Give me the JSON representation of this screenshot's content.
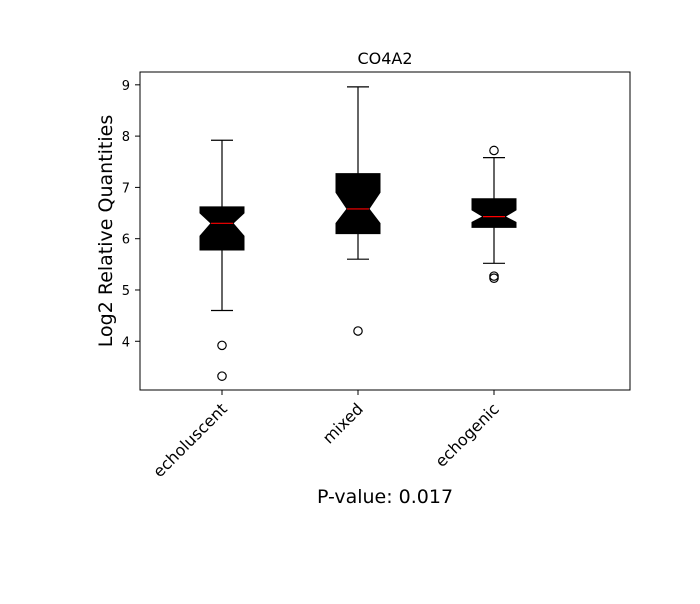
{
  "chart_data": {
    "type": "box",
    "title": "CO4A2",
    "xlabel": "P-value: 0.017",
    "ylabel": "Log2 Relative Quantities",
    "categories": [
      "echoluscent",
      "mixed",
      "echogenic"
    ],
    "ylim": [
      3.05,
      9.25
    ],
    "yticks": [
      4,
      5,
      6,
      7,
      8,
      9
    ],
    "notched": true,
    "grid": false,
    "legend": "none",
    "box_fill_color": "#000000",
    "median_color": "#ff0000",
    "series": [
      {
        "category": "echoluscent",
        "whisker_low": 4.6,
        "q1": 5.78,
        "notch_low": 6.05,
        "median": 6.3,
        "notch_high": 6.5,
        "q3": 6.62,
        "whisker_high": 7.92,
        "outliers": [
          3.92,
          3.32
        ]
      },
      {
        "category": "mixed",
        "whisker_low": 5.6,
        "q1": 6.1,
        "notch_low": 6.3,
        "median": 6.58,
        "notch_high": 6.9,
        "q3": 7.27,
        "whisker_high": 8.96,
        "outliers": [
          4.2
        ]
      },
      {
        "category": "echogenic",
        "whisker_low": 5.52,
        "q1": 6.22,
        "notch_low": 6.32,
        "median": 6.43,
        "notch_high": 6.56,
        "q3": 6.78,
        "whisker_high": 7.58,
        "outliers": [
          7.72,
          5.27,
          5.23
        ]
      }
    ]
  }
}
